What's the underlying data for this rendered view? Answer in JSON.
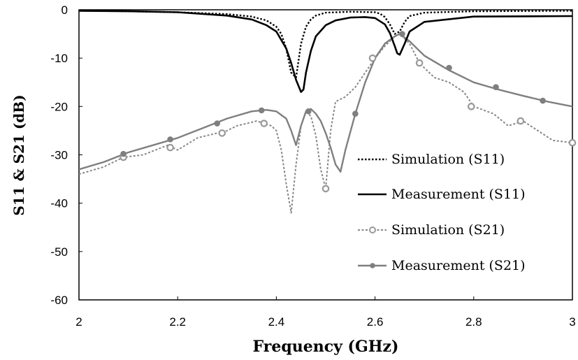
{
  "chart_data": {
    "type": "line",
    "title": "",
    "xlabel": "Frequency (GHz)",
    "ylabel": "S11 & S21 (dB)",
    "xlim": [
      2,
      3
    ],
    "ylim": [
      -60,
      0
    ],
    "xticks": [
      "2",
      "2.2",
      "2.4",
      "2.6",
      "2.8",
      "3"
    ],
    "yticks": [
      "0",
      "-10",
      "-20",
      "-30",
      "-40",
      "-50",
      "-60"
    ],
    "grid": false,
    "legend_position": "center-right",
    "series": [
      {
        "name": "Simulation (S11)",
        "style": "dotted",
        "color": "#000000",
        "markers": false,
        "x": [
          2.0,
          2.1,
          2.2,
          2.3,
          2.35,
          2.38,
          2.4,
          2.41,
          2.42,
          2.43,
          2.44,
          2.45,
          2.46,
          2.47,
          2.48,
          2.5,
          2.55,
          2.6,
          2.61,
          2.62,
          2.63,
          2.64,
          2.65,
          2.66,
          2.67,
          2.7,
          2.8,
          3.0
        ],
        "y": [
          -0.2,
          -0.3,
          -0.5,
          -0.9,
          -1.4,
          -2.2,
          -3.5,
          -5.0,
          -8.0,
          -13.0,
          -14.0,
          -7.0,
          -3.5,
          -2.0,
          -1.2,
          -0.6,
          -0.4,
          -0.5,
          -0.8,
          -1.5,
          -3.0,
          -5.0,
          -4.5,
          -2.5,
          -1.3,
          -0.6,
          -0.3,
          -0.2
        ]
      },
      {
        "name": "Measurement (S11)",
        "style": "solid",
        "color": "#000000",
        "markers": false,
        "x": [
          2.0,
          2.1,
          2.2,
          2.3,
          2.35,
          2.38,
          2.4,
          2.42,
          2.43,
          2.44,
          2.45,
          2.455,
          2.46,
          2.47,
          2.48,
          2.5,
          2.52,
          2.55,
          2.58,
          2.6,
          2.62,
          2.63,
          2.64,
          2.645,
          2.65,
          2.66,
          2.67,
          2.7,
          2.8,
          3.0
        ],
        "y": [
          -0.2,
          -0.3,
          -0.5,
          -1.2,
          -2.0,
          -3.2,
          -4.5,
          -8.0,
          -11.0,
          -14.5,
          -17.0,
          -16.5,
          -13.0,
          -8.5,
          -5.5,
          -3.2,
          -2.2,
          -1.6,
          -1.5,
          -1.7,
          -3.0,
          -4.8,
          -7.5,
          -9.0,
          -9.3,
          -7.0,
          -4.5,
          -2.5,
          -1.4,
          -1.3
        ]
      },
      {
        "name": "Simulation (S21)",
        "style": "dotted",
        "color": "#888888",
        "markers": true,
        "x": [
          2.0,
          2.05,
          2.09,
          2.13,
          2.18,
          2.2,
          2.24,
          2.28,
          2.29,
          2.32,
          2.36,
          2.39,
          2.4,
          2.41,
          2.42,
          2.43,
          2.44,
          2.45,
          2.46,
          2.47,
          2.48,
          2.49,
          2.5,
          2.51,
          2.52,
          2.54,
          2.56,
          2.58,
          2.6,
          2.62,
          2.64,
          2.65,
          2.67,
          2.69,
          2.72,
          2.75,
          2.78,
          2.8,
          2.84,
          2.87,
          2.9,
          2.93,
          2.96,
          3.0
        ],
        "y": [
          -34.0,
          -32.5,
          -30.5,
          -30.0,
          -28.0,
          -29.0,
          -26.5,
          -25.5,
          -25.5,
          -24.0,
          -23.0,
          -24.0,
          -25.0,
          -29.0,
          -36.0,
          -42.0,
          -32.0,
          -24.0,
          -21.0,
          -22.0,
          -26.0,
          -33.0,
          -37.0,
          -25.0,
          -19.0,
          -18.0,
          -16.0,
          -13.0,
          -10.0,
          -7.5,
          -5.5,
          -5.0,
          -7.0,
          -11.0,
          -14.0,
          -15.0,
          -17.0,
          -20.0,
          -21.5,
          -24.0,
          -23.0,
          -25.0,
          -27.0,
          -27.5
        ]
      },
      {
        "name": "Measurement (S21)",
        "style": "solid",
        "color": "#7f7f7f",
        "markers": true,
        "x": [
          2.0,
          2.05,
          2.1,
          2.15,
          2.2,
          2.25,
          2.3,
          2.35,
          2.38,
          2.4,
          2.42,
          2.43,
          2.44,
          2.45,
          2.46,
          2.47,
          2.48,
          2.49,
          2.5,
          2.51,
          2.52,
          2.53,
          2.54,
          2.56,
          2.58,
          2.6,
          2.62,
          2.64,
          2.65,
          2.67,
          2.7,
          2.75,
          2.8,
          2.85,
          2.9,
          2.95,
          3.0
        ],
        "y": [
          -33.0,
          -31.5,
          -29.5,
          -28.0,
          -26.5,
          -24.5,
          -22.5,
          -21.0,
          -20.7,
          -21.0,
          -22.5,
          -25.0,
          -28.0,
          -24.0,
          -21.0,
          -20.5,
          -21.5,
          -23.0,
          -25.5,
          -28.5,
          -32.0,
          -33.5,
          -29.0,
          -21.5,
          -15.0,
          -10.0,
          -7.0,
          -5.5,
          -5.0,
          -6.5,
          -9.5,
          -12.5,
          -15.0,
          -16.5,
          -17.8,
          -19.0,
          -20.0
        ]
      }
    ],
    "marker_series": [
      {
        "name": "Simulation (S21)",
        "x": [
          2.09,
          2.185,
          2.29,
          2.375,
          2.5,
          2.595,
          2.69,
          2.795,
          2.895,
          3.0
        ],
        "y": [
          -30.5,
          -28.5,
          -25.5,
          -23.5,
          -37.0,
          -10.0,
          -11.0,
          -20.0,
          -23.0,
          -27.5
        ]
      },
      {
        "name": "Measurement (S21)",
        "x": [
          2.09,
          2.185,
          2.28,
          2.37,
          2.465,
          2.56,
          2.655,
          2.75,
          2.845,
          2.94
        ],
        "y": [
          -29.8,
          -26.8,
          -23.5,
          -20.8,
          -21.0,
          -21.5,
          -5.0,
          -12.0,
          -16.0,
          -18.8
        ]
      }
    ]
  }
}
